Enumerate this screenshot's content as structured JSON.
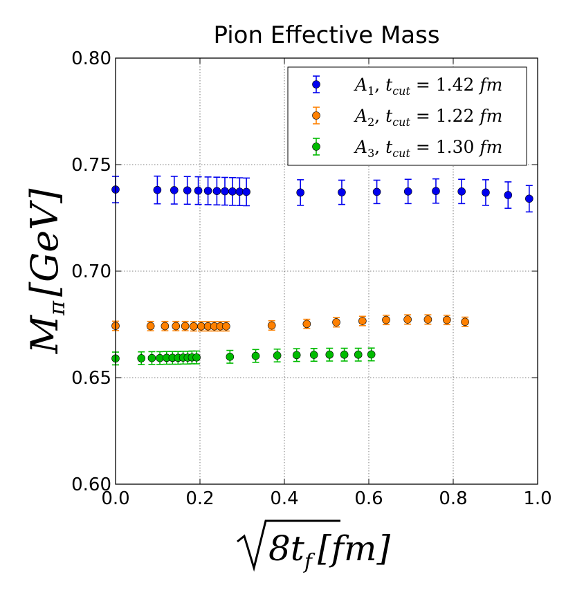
{
  "chart_data": {
    "type": "scatter",
    "title": "Pion Effective Mass",
    "xlabel": {
      "radical": "8t",
      "sub": "f",
      "unit": "[fm]"
    },
    "ylabel": {
      "main": "M",
      "sub": "π",
      "unit": "[GeV]"
    },
    "xlim": [
      0.0,
      1.0
    ],
    "ylim": [
      0.6,
      0.8
    ],
    "xticks": [
      0.0,
      0.2,
      0.4,
      0.6,
      0.8,
      1.0
    ],
    "xtick_labels": [
      "0.0",
      "0.2",
      "0.4",
      "0.6",
      "0.8",
      "1.0"
    ],
    "yticks": [
      0.6,
      0.65,
      0.7,
      0.75,
      0.8
    ],
    "ytick_labels": [
      "0.60",
      "0.65",
      "0.70",
      "0.75",
      "0.80"
    ],
    "grid": true,
    "legend_position": "top-right",
    "series": [
      {
        "name": "A1",
        "label": {
          "main": "A",
          "sub": "1",
          "cond": "t",
          "cond_sub": "cut",
          "value": "= 1.42",
          "unit": "fm"
        },
        "color": "#0000ee",
        "x": [
          0.0,
          0.099,
          0.139,
          0.17,
          0.196,
          0.219,
          0.24,
          0.259,
          0.277,
          0.294,
          0.31,
          0.438,
          0.536,
          0.619,
          0.693,
          0.759,
          0.82,
          0.877,
          0.93,
          0.98
        ],
        "y": [
          0.7383,
          0.7381,
          0.738,
          0.7379,
          0.7378,
          0.7377,
          0.7376,
          0.7375,
          0.7374,
          0.7373,
          0.7372,
          0.7369,
          0.737,
          0.7372,
          0.7374,
          0.7376,
          0.7374,
          0.7369,
          0.7357,
          0.734
        ],
        "err": [
          0.0062,
          0.0065,
          0.0065,
          0.0065,
          0.0065,
          0.0065,
          0.0065,
          0.0065,
          0.0065,
          0.0065,
          0.0065,
          0.006,
          0.0057,
          0.0055,
          0.0057,
          0.0057,
          0.0057,
          0.006,
          0.0062,
          0.0062
        ]
      },
      {
        "name": "A2",
        "label": {
          "main": "A",
          "sub": "2",
          "cond": "t",
          "cond_sub": "cut",
          "value": "= 1.22",
          "unit": "fm"
        },
        "color": "#ff8000",
        "x": [
          0.0,
          0.083,
          0.117,
          0.143,
          0.165,
          0.185,
          0.203,
          0.219,
          0.234,
          0.248,
          0.262,
          0.37,
          0.453,
          0.523,
          0.585,
          0.641,
          0.692,
          0.74,
          0.785,
          0.828
        ],
        "y": [
          0.6743,
          0.6742,
          0.6742,
          0.6742,
          0.6742,
          0.6741,
          0.6741,
          0.6741,
          0.6741,
          0.6741,
          0.6741,
          0.6745,
          0.6752,
          0.676,
          0.6766,
          0.6771,
          0.6773,
          0.6773,
          0.6771,
          0.6762
        ],
        "err": [
          0.0022,
          0.0022,
          0.0022,
          0.0022,
          0.0022,
          0.0022,
          0.0022,
          0.0022,
          0.0022,
          0.0022,
          0.0022,
          0.0022,
          0.0022,
          0.0022,
          0.0022,
          0.0022,
          0.0022,
          0.0022,
          0.0022,
          0.0022
        ]
      },
      {
        "name": "A3",
        "label": {
          "main": "A",
          "sub": "3",
          "cond": "t",
          "cond_sub": "cut",
          "value": "= 1.30",
          "unit": "fm"
        },
        "color": "#00bb00",
        "x": [
          0.0,
          0.061,
          0.086,
          0.105,
          0.121,
          0.135,
          0.148,
          0.16,
          0.171,
          0.181,
          0.192,
          0.271,
          0.332,
          0.383,
          0.429,
          0.47,
          0.507,
          0.542,
          0.575,
          0.606
        ],
        "y": [
          0.659,
          0.6591,
          0.6592,
          0.6592,
          0.6593,
          0.6593,
          0.6593,
          0.6594,
          0.6594,
          0.6595,
          0.6595,
          0.6598,
          0.6602,
          0.6604,
          0.6606,
          0.6607,
          0.6608,
          0.6608,
          0.6608,
          0.6609
        ],
        "err": [
          0.003,
          0.003,
          0.003,
          0.003,
          0.003,
          0.003,
          0.003,
          0.003,
          0.003,
          0.003,
          0.003,
          0.003,
          0.003,
          0.003,
          0.003,
          0.003,
          0.003,
          0.003,
          0.003,
          0.003
        ]
      }
    ]
  }
}
